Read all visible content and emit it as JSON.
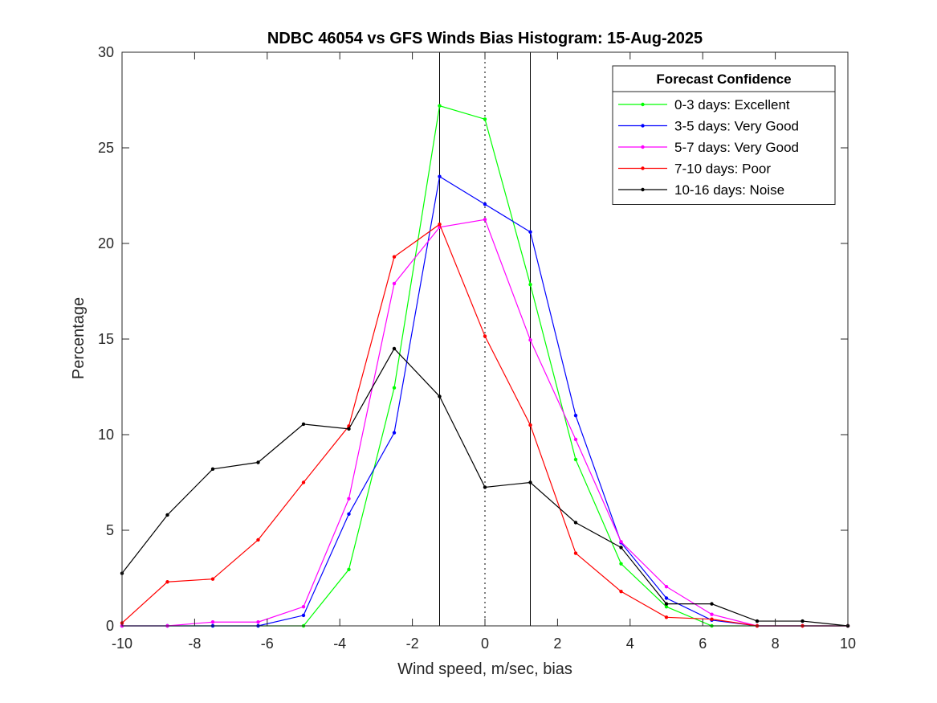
{
  "chart_data": {
    "type": "line",
    "title": "NDBC 46054 vs GFS Winds Bias Histogram: 15-Aug-2025",
    "xlabel": "Wind speed, m/sec, bias",
    "ylabel": "Percentage",
    "xlim": [
      -10,
      10
    ],
    "ylim": [
      0,
      30
    ],
    "xticks": [
      -10,
      -8,
      -6,
      -4,
      -2,
      0,
      2,
      4,
      6,
      8,
      10
    ],
    "yticks": [
      0,
      5,
      10,
      15,
      20,
      25,
      30
    ],
    "x": [
      -10,
      -8.75,
      -7.5,
      -6.25,
      -5,
      -3.75,
      -2.5,
      -1.25,
      0,
      1.25,
      2.5,
      3.75,
      5,
      6.25,
      7.5,
      8.75,
      10
    ],
    "reference_lines": {
      "solid": [
        -1.25,
        1.25
      ],
      "dotted": [
        0
      ]
    },
    "legend": {
      "title": "Forecast Confidence",
      "location": "top-right"
    },
    "series": [
      {
        "name": "0-3 days: Excellent",
        "color": "#00ff00",
        "values": [
          0,
          0,
          0,
          0,
          0,
          2.95,
          12.45,
          27.2,
          26.5,
          17.85,
          8.7,
          3.25,
          1.0,
          0,
          0,
          0,
          0
        ]
      },
      {
        "name": "3-5 days: Very Good",
        "color": "#0000ff",
        "values": [
          0,
          0,
          0,
          0,
          0.55,
          5.85,
          10.1,
          23.5,
          22.05,
          20.6,
          11.0,
          4.35,
          1.45,
          0.3,
          0,
          0,
          0
        ]
      },
      {
        "name": "5-7 days: Very Good",
        "color": "#ff00ff",
        "values": [
          0,
          0,
          0.2,
          0.2,
          1.0,
          6.65,
          17.9,
          20.85,
          21.25,
          14.95,
          9.75,
          4.4,
          2.05,
          0.6,
          0,
          0,
          0
        ]
      },
      {
        "name": "7-10 days: Poor",
        "color": "#ff0000",
        "values": [
          0.15,
          2.3,
          2.45,
          4.5,
          7.5,
          10.45,
          19.3,
          21.0,
          15.15,
          10.5,
          3.8,
          1.8,
          0.45,
          0.35,
          0,
          0,
          0
        ]
      },
      {
        "name": "10-16 days: Noise",
        "color": "#000000",
        "values": [
          2.75,
          5.8,
          8.2,
          8.55,
          10.55,
          10.3,
          14.5,
          12.0,
          7.25,
          7.5,
          5.4,
          4.1,
          1.15,
          1.15,
          0.25,
          0.25,
          0
        ]
      }
    ]
  }
}
